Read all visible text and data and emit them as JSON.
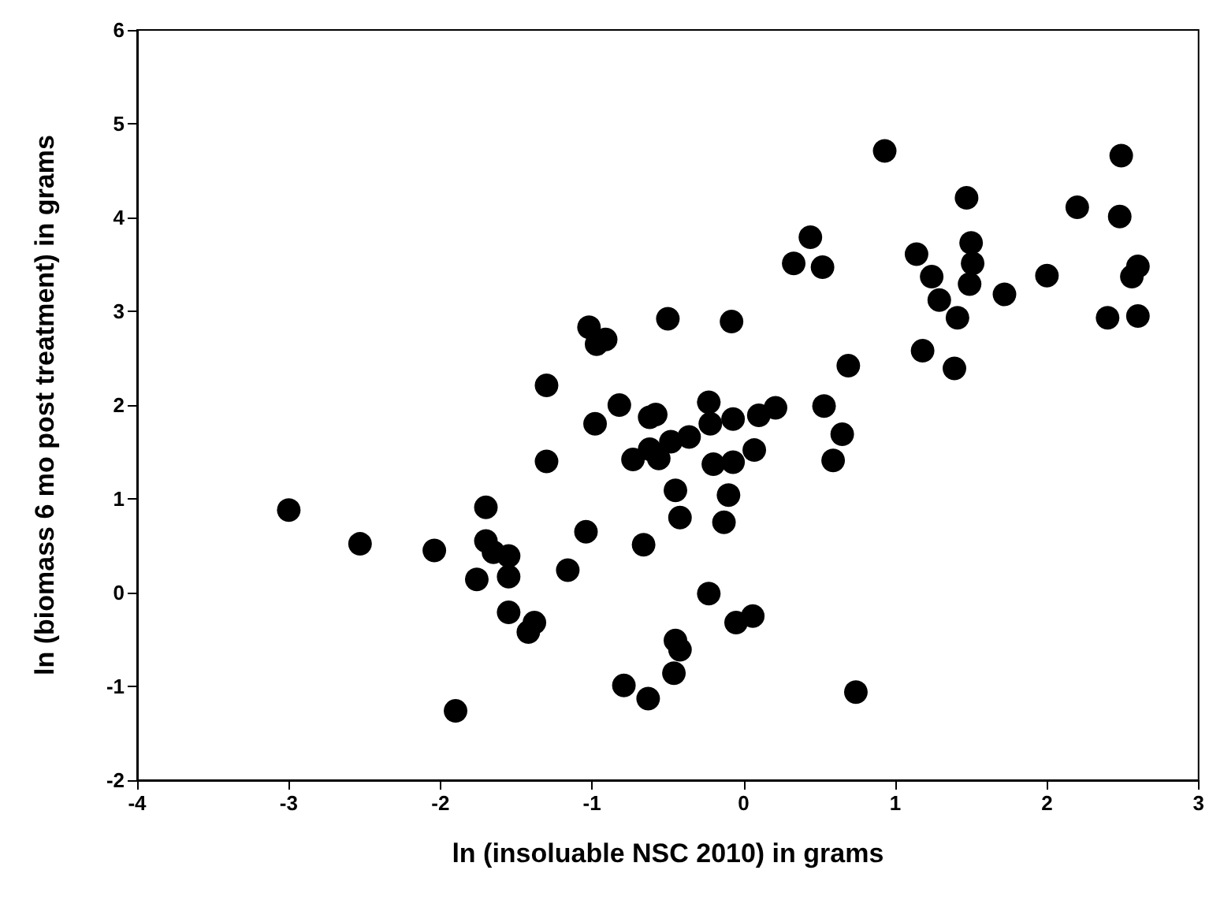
{
  "chart_data": {
    "type": "scatter",
    "xlabel": "ln (insoluable NSC 2010) in grams",
    "ylabel": "ln (biomass 6 mo post treatment) in grams",
    "x": [
      -3.0,
      -2.53,
      -2.04,
      -1.9,
      -1.76,
      -1.7,
      -1.7,
      -1.65,
      -1.55,
      -1.55,
      -1.55,
      -1.42,
      -1.38,
      -1.3,
      -1.3,
      -1.16,
      -1.04,
      -1.02,
      -0.98,
      -0.97,
      -0.91,
      -0.82,
      -0.79,
      -0.73,
      -0.66,
      -0.62,
      -0.62,
      -0.58,
      -0.56,
      -0.63,
      -0.5,
      -0.48,
      -0.46,
      -0.45,
      -0.45,
      -0.42,
      -0.42,
      -0.36,
      -0.23,
      -0.22,
      -0.23,
      -0.2,
      -0.13,
      -0.1,
      -0.08,
      -0.07,
      -0.07,
      -0.05,
      0.06,
      0.07,
      0.1,
      0.21,
      0.33,
      0.44,
      0.52,
      0.53,
      0.59,
      0.65,
      0.69,
      0.74,
      0.93,
      1.14,
      1.18,
      1.24,
      1.29,
      1.39,
      1.41,
      1.47,
      1.49,
      1.5,
      1.51,
      1.72,
      2.0,
      2.2,
      2.4,
      2.48,
      2.49,
      2.56,
      2.6,
      2.6
    ],
    "values": [
      0.88,
      0.52,
      0.45,
      -1.26,
      0.14,
      0.91,
      0.55,
      0.43,
      0.39,
      0.17,
      -0.21,
      -0.42,
      -0.32,
      2.21,
      1.4,
      0.24,
      0.65,
      2.83,
      1.8,
      2.65,
      2.7,
      2.0,
      -0.99,
      1.42,
      0.51,
      1.87,
      1.53,
      1.9,
      1.43,
      -1.13,
      2.92,
      1.61,
      -0.86,
      1.09,
      -0.51,
      -0.61,
      0.8,
      1.66,
      2.03,
      1.8,
      -0.01,
      1.37,
      0.75,
      1.04,
      2.89,
      1.85,
      1.39,
      -0.32,
      -0.25,
      1.52,
      1.89,
      1.97,
      3.51,
      3.79,
      3.47,
      1.99,
      1.41,
      1.69,
      2.42,
      -1.06,
      4.71,
      3.61,
      2.58,
      3.37,
      3.12,
      2.39,
      2.93,
      4.21,
      3.29,
      3.73,
      3.51,
      3.18,
      3.38,
      4.11,
      2.93,
      4.01,
      4.66,
      3.37,
      3.48,
      2.95
    ],
    "color": "#000000",
    "marker": "circle",
    "xlim": [
      -4,
      3
    ],
    "xticks": [
      -4,
      -3,
      -2,
      -1,
      0,
      1,
      2,
      3
    ],
    "ylim": [
      -2,
      6
    ],
    "yticks": [
      -2,
      -1,
      0,
      1,
      2,
      3,
      4,
      5,
      6
    ],
    "grid": false
  }
}
